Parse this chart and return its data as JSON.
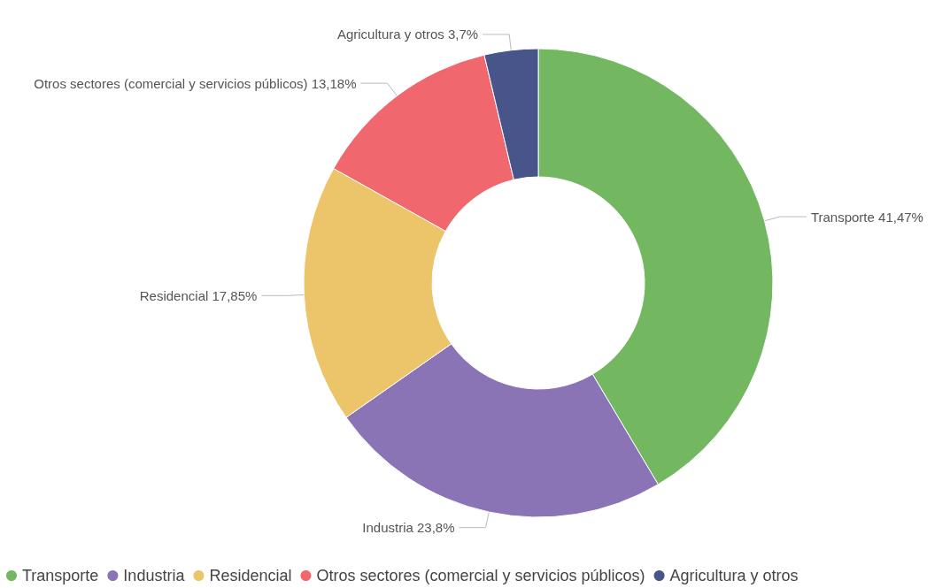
{
  "chart_data": {
    "type": "donut",
    "categories": [
      "Transporte",
      "Industria",
      "Residencial",
      "Otros sectores (comercial y servicios públicos)",
      "Agricultura y otros"
    ],
    "values": [
      41.47,
      23.8,
      17.85,
      13.18,
      3.7
    ],
    "value_labels": [
      "41,47%",
      "23,8%",
      "17,85%",
      "13,18%",
      "3,7%"
    ],
    "colors": [
      "#73b761",
      "#8a74b6",
      "#ecc46a",
      "#f0676e",
      "#47558a"
    ],
    "legend": "bottom left"
  }
}
